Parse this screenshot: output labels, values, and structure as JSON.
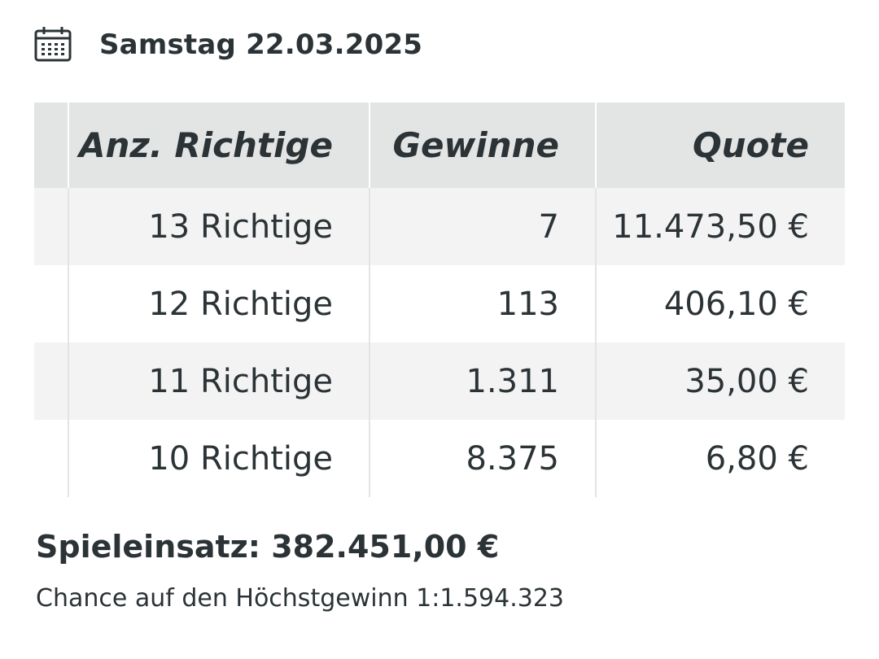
{
  "header": {
    "calendar_icon": "calendar-icon",
    "date_label": "Samstag 22.03.2025"
  },
  "table": {
    "columns": [
      "Anz. Richtige",
      "Gewinne",
      "Quote"
    ],
    "rows": [
      {
        "richtige": "13 Richtige",
        "gewinne": "7",
        "quote": "11.473,50 €"
      },
      {
        "richtige": "12 Richtige",
        "gewinne": "113",
        "quote": "406,10 €"
      },
      {
        "richtige": "11 Richtige",
        "gewinne": "1.311",
        "quote": "35,00 €"
      },
      {
        "richtige": "10 Richtige",
        "gewinne": "8.375",
        "quote": "6,80 €"
      }
    ]
  },
  "footer": {
    "stake": "Spieleinsatz: 382.451,00 €",
    "chance": "Chance auf den Höchstgewinn 1:1.594.323"
  },
  "colors": {
    "text": "#2b3336",
    "header_bg": "#e3e4e4",
    "row_shade": "#f3f3f3",
    "background": "#ffffff"
  }
}
